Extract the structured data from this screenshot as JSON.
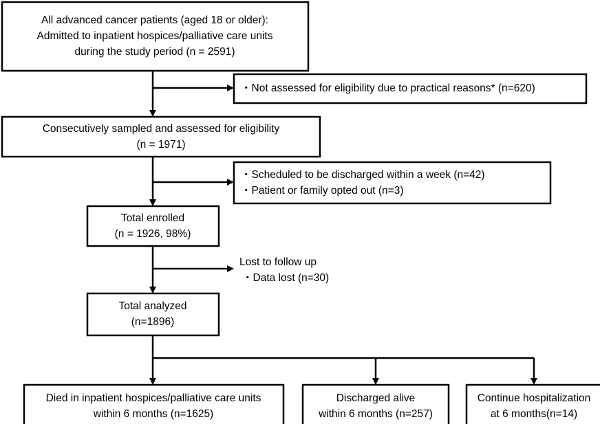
{
  "nodes": [
    {
      "lines": [
        "All advanced cancer patients (aged 18 or older):",
        "Admitted to inpatient hospices/palliative care units",
        "during the study period (n = 2591)"
      ]
    },
    {
      "lines": [
        "・Not assessed for eligibility due to practical reasons* (n=620)"
      ]
    },
    {
      "lines": [
        "Consecutively sampled and assessed for eligibility",
        "(n = 1971)"
      ]
    },
    {
      "lines": [
        "・Scheduled to be discharged within a week (n=42)",
        "・Patient or family opted out (n=3)"
      ]
    },
    {
      "lines": [
        "Total enrolled",
        "(n = 1926, 98%)"
      ]
    },
    {
      "lines": [
        "Lost to follow up",
        "・Data lost (n=30)"
      ]
    },
    {
      "lines": [
        "Total analyzed",
        "(n=1896)"
      ]
    },
    {
      "lines": [
        "Died in inpatient hospices/palliative care units",
        "within 6 months (n=1625)"
      ]
    },
    {
      "lines": [
        "Discharged alive",
        "within 6 months (n=257)"
      ]
    },
    {
      "lines": [
        "Continue hospitalization",
        "at 6 months(n=14)"
      ]
    }
  ]
}
